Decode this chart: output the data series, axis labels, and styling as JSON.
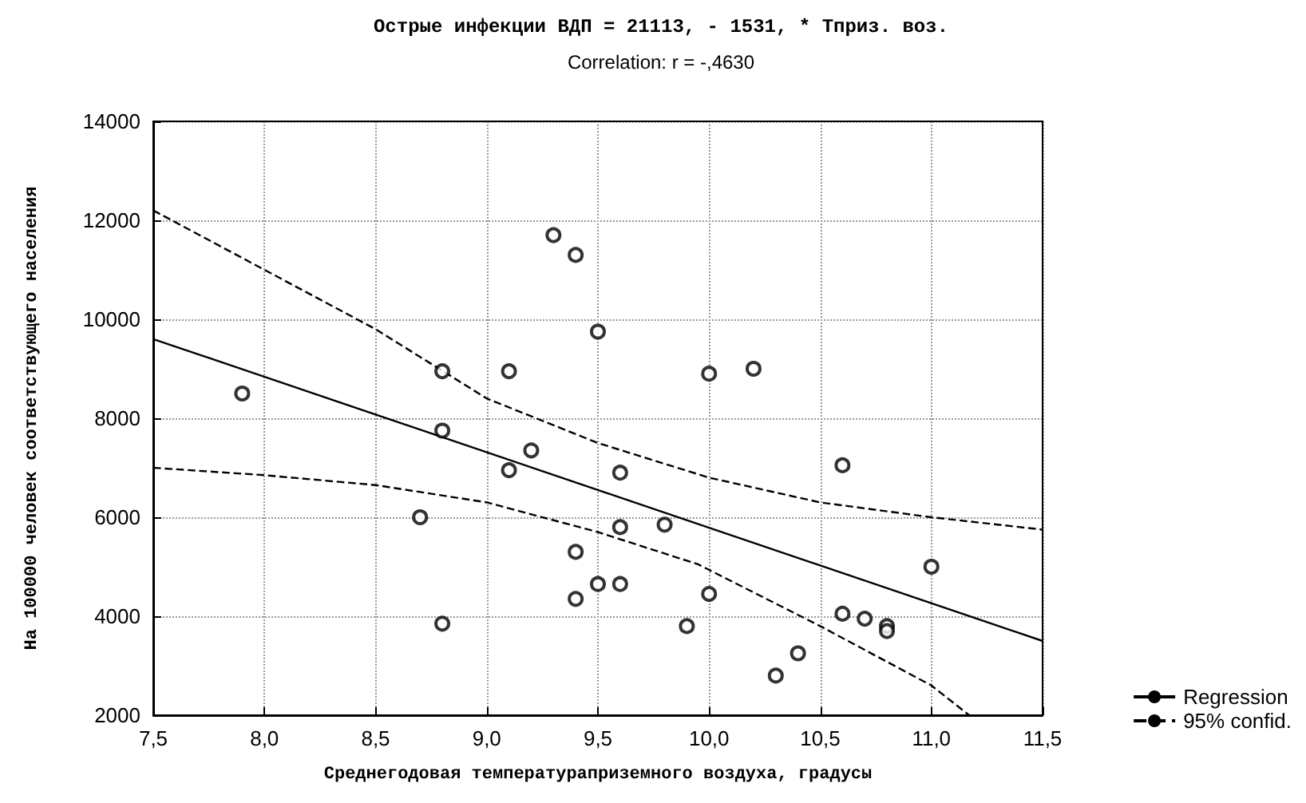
{
  "chart_data": {
    "type": "scatter",
    "title": "Острые инфекции ВДП = 21113, - 1531, * Тприз. воз.",
    "subtitle": "Correlation: r = -,4630",
    "xlabel": "Среднегодовая температураприземного воздуха, градусы",
    "ylabel": "На 100000 человек соответствующего населения",
    "xlim": [
      7.5,
      11.5
    ],
    "xticks": [
      {
        "value": 7.5,
        "label": "7,5"
      },
      {
        "value": 8,
        "label": "8,0"
      },
      {
        "value": 8.5,
        "label": "8,5"
      },
      {
        "value": 9,
        "label": "9,0"
      },
      {
        "value": 9.5,
        "label": "9,5"
      },
      {
        "value": 10,
        "label": "10,0"
      },
      {
        "value": 10.5,
        "label": "10,5"
      },
      {
        "value": 11,
        "label": "11,0"
      },
      {
        "value": 11.5,
        "label": "11,5"
      }
    ],
    "ylim": [
      2000,
      14000
    ],
    "yticks": [
      2000,
      4000,
      6000,
      8000,
      10000,
      12000,
      14000
    ],
    "grid": true,
    "legend": "bottom right",
    "series": [
      {
        "marker": "circle",
        "color": "#000000",
        "x": [
          7.9,
          8.7,
          8.8,
          8.8,
          8.8,
          9.1,
          9.1,
          9.2,
          9.3,
          9.4,
          9.4,
          9.4,
          9.5,
          9.5,
          9.6,
          9.6,
          9.6,
          9.8,
          9.9,
          10.0,
          10.0,
          10.2,
          10.3,
          10.4,
          10.6,
          10.6,
          10.7,
          10.8,
          10.8,
          11.0
        ],
        "values": [
          8500,
          6000,
          8950,
          7750,
          3850,
          8950,
          6950,
          7350,
          11700,
          11300,
          5300,
          4350,
          9750,
          4650,
          6900,
          5800,
          4650,
          5850,
          3800,
          8900,
          4450,
          9000,
          2800,
          3250,
          7050,
          4050,
          3950,
          3800,
          3700,
          5000
        ]
      },
      {
        "type": "line",
        "name": "Regression",
        "marker": "none",
        "color": "#000000",
        "line_style": "solid",
        "x": [
          7.5,
          11.5
        ],
        "values": [
          9600,
          3500
        ]
      },
      {
        "type": "line",
        "name": "95% confid.",
        "marker": "none",
        "color": "#000000",
        "line_style": "dashed",
        "x": [
          7.5,
          8.0,
          8.5,
          9.0,
          9.5,
          10.0,
          10.5,
          11.0,
          11.5
        ],
        "values": [
          12200,
          11000,
          9800,
          8400,
          7500,
          6800,
          6300,
          6000,
          5750
        ]
      },
      {
        "type": "line",
        "marker": "none",
        "color": "#000000",
        "line_style": "dashed",
        "x": [
          7.5,
          8.0,
          8.5,
          9.0,
          9.5,
          9.95,
          10.5,
          11.0,
          11.17
        ],
        "values": [
          7000,
          6850,
          6650,
          6300,
          5700,
          5050,
          3800,
          2600,
          2000
        ]
      }
    ]
  }
}
